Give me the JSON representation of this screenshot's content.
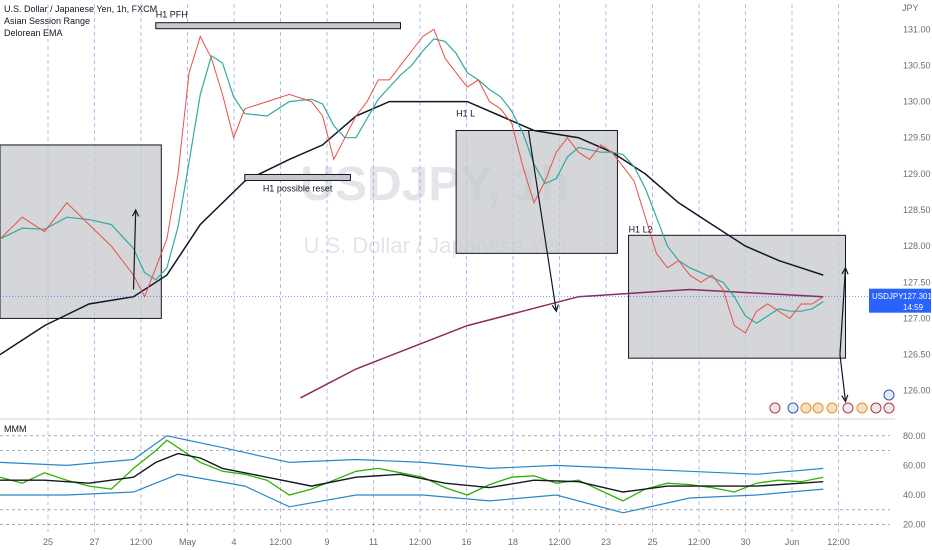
{
  "chart_data": {
    "type": "line",
    "title": "U.S. Dollar / Japanese Yen, 1h, FXCM",
    "indicators": [
      "Asian Session Range",
      "Delorean EMA"
    ],
    "watermark": {
      "symbol": "USDJPY, 1h",
      "name": "U.S. Dollar / Japanese Yen"
    },
    "currency_label": "JPY",
    "y_ticks": [
      131.0,
      130.5,
      130.0,
      129.5,
      129.0,
      128.5,
      128.0,
      127.5,
      127.0,
      126.5,
      126.0
    ],
    "ylim": [
      125.65,
      131.35
    ],
    "x_ticks": [
      "25",
      "27",
      "12:00",
      "May",
      "4",
      "12:00",
      "9",
      "11",
      "12:00",
      "16",
      "18",
      "12:00",
      "23",
      "25",
      "12:00",
      "30",
      "Jun",
      "12:00"
    ],
    "last_price": {
      "symbol": "USDJPY",
      "value": "127.301",
      "countdown": "14:59",
      "price": 127.301
    },
    "price_series": [
      {
        "x": 0,
        "y": 128.1
      },
      {
        "x": 2,
        "y": 128.4
      },
      {
        "x": 4,
        "y": 128.2
      },
      {
        "x": 6,
        "y": 128.6
      },
      {
        "x": 8,
        "y": 128.3
      },
      {
        "x": 10,
        "y": 128.0
      },
      {
        "x": 12,
        "y": 127.6
      },
      {
        "x": 13,
        "y": 127.3
      },
      {
        "x": 14,
        "y": 127.7
      },
      {
        "x": 15,
        "y": 128.1
      },
      {
        "x": 16,
        "y": 129.0
      },
      {
        "x": 17,
        "y": 130.4
      },
      {
        "x": 18,
        "y": 130.9
      },
      {
        "x": 19,
        "y": 130.6
      },
      {
        "x": 20,
        "y": 130.1
      },
      {
        "x": 21,
        "y": 129.5
      },
      {
        "x": 22,
        "y": 129.9
      },
      {
        "x": 24,
        "y": 130.0
      },
      {
        "x": 26,
        "y": 130.1
      },
      {
        "x": 28,
        "y": 130.0
      },
      {
        "x": 29,
        "y": 129.8
      },
      {
        "x": 30,
        "y": 129.2
      },
      {
        "x": 31,
        "y": 129.5
      },
      {
        "x": 32,
        "y": 129.8
      },
      {
        "x": 33,
        "y": 130.0
      },
      {
        "x": 34,
        "y": 130.3
      },
      {
        "x": 35,
        "y": 130.3
      },
      {
        "x": 36,
        "y": 130.5
      },
      {
        "x": 37,
        "y": 130.7
      },
      {
        "x": 38,
        "y": 130.9
      },
      {
        "x": 39,
        "y": 131.0
      },
      {
        "x": 40,
        "y": 130.6
      },
      {
        "x": 41,
        "y": 130.4
      },
      {
        "x": 42,
        "y": 130.2
      },
      {
        "x": 43,
        "y": 130.3
      },
      {
        "x": 44,
        "y": 130.0
      },
      {
        "x": 45,
        "y": 129.9
      },
      {
        "x": 46,
        "y": 129.7
      },
      {
        "x": 47,
        "y": 129.1
      },
      {
        "x": 48,
        "y": 128.6
      },
      {
        "x": 49,
        "y": 128.9
      },
      {
        "x": 50,
        "y": 129.3
      },
      {
        "x": 51,
        "y": 129.5
      },
      {
        "x": 52,
        "y": 129.3
      },
      {
        "x": 53,
        "y": 129.2
      },
      {
        "x": 54,
        "y": 129.4
      },
      {
        "x": 55,
        "y": 129.3
      },
      {
        "x": 56,
        "y": 129.1
      },
      {
        "x": 57,
        "y": 128.9
      },
      {
        "x": 58,
        "y": 128.4
      },
      {
        "x": 59,
        "y": 127.9
      },
      {
        "x": 60,
        "y": 127.7
      },
      {
        "x": 61,
        "y": 127.8
      },
      {
        "x": 62,
        "y": 127.6
      },
      {
        "x": 63,
        "y": 127.5
      },
      {
        "x": 64,
        "y": 127.6
      },
      {
        "x": 65,
        "y": 127.4
      },
      {
        "x": 66,
        "y": 126.9
      },
      {
        "x": 67,
        "y": 126.8
      },
      {
        "x": 68,
        "y": 127.1
      },
      {
        "x": 69,
        "y": 127.2
      },
      {
        "x": 70,
        "y": 127.1
      },
      {
        "x": 71,
        "y": 127.0
      },
      {
        "x": 72,
        "y": 127.2
      },
      {
        "x": 73,
        "y": 127.2
      },
      {
        "x": 74,
        "y": 127.3
      }
    ],
    "ema_slow": [
      {
        "x": 0,
        "y": 126.5
      },
      {
        "x": 4,
        "y": 126.9
      },
      {
        "x": 8,
        "y": 127.2
      },
      {
        "x": 12,
        "y": 127.3
      },
      {
        "x": 15,
        "y": 127.6
      },
      {
        "x": 18,
        "y": 128.3
      },
      {
        "x": 22,
        "y": 128.9
      },
      {
        "x": 26,
        "y": 129.2
      },
      {
        "x": 29,
        "y": 129.4
      },
      {
        "x": 32,
        "y": 129.8
      },
      {
        "x": 35,
        "y": 130.0
      },
      {
        "x": 38,
        "y": 130.0
      },
      {
        "x": 42,
        "y": 130.0
      },
      {
        "x": 45,
        "y": 129.8
      },
      {
        "x": 48,
        "y": 129.6
      },
      {
        "x": 52,
        "y": 129.5
      },
      {
        "x": 55,
        "y": 129.3
      },
      {
        "x": 58,
        "y": 129.0
      },
      {
        "x": 61,
        "y": 128.6
      },
      {
        "x": 64,
        "y": 128.3
      },
      {
        "x": 67,
        "y": 128.0
      },
      {
        "x": 70,
        "y": 127.8
      },
      {
        "x": 72,
        "y": 127.7
      },
      {
        "x": 74,
        "y": 127.6
      }
    ],
    "ema_long": [
      {
        "x": 27,
        "y": 125.9
      },
      {
        "x": 32,
        "y": 126.3
      },
      {
        "x": 37,
        "y": 126.6
      },
      {
        "x": 42,
        "y": 126.9
      },
      {
        "x": 47,
        "y": 127.1
      },
      {
        "x": 52,
        "y": 127.3
      },
      {
        "x": 57,
        "y": 127.35
      },
      {
        "x": 62,
        "y": 127.4
      },
      {
        "x": 68,
        "y": 127.35
      },
      {
        "x": 74,
        "y": 127.3
      }
    ],
    "zones": [
      {
        "label": "",
        "x0": 0,
        "x1": 14.5,
        "y0": 129.4,
        "y1": 127.0
      },
      {
        "label": "",
        "x0": 41,
        "x1": 55.5,
        "y0": 129.6,
        "y1": 127.9
      },
      {
        "label": "",
        "x0": 56.5,
        "x1": 76,
        "y0": 128.15,
        "y1": 126.45
      }
    ],
    "level_bars": [
      {
        "label": "H1 PFH",
        "x0": 14,
        "x1": 36,
        "y": 131.05
      },
      {
        "label": "H1 possible reset",
        "x0": 22,
        "x1": 31.5,
        "y": 128.95
      }
    ],
    "labels": [
      {
        "text": "H1 L",
        "x": 41,
        "y": 129.75
      },
      {
        "text": "H1 L2",
        "x": 56.5,
        "y": 128.15
      }
    ],
    "arrows": [
      {
        "x0": 12,
        "y0": 127.4,
        "x1": 12.2,
        "y1": 128.5
      },
      {
        "x0": 47.5,
        "y0": 129.6,
        "x1": 50,
        "y1": 127.1
      },
      {
        "x0": 75.5,
        "y0": 126.5,
        "x1": 76,
        "y1": 127.7
      },
      {
        "x0": 75.5,
        "y0": 126.5,
        "x1": 76,
        "y1": 125.85
      }
    ],
    "oscillator": {
      "name": "MMM",
      "y_ticks": [
        80.0,
        60.0,
        40.0,
        20.0
      ],
      "ylim": [
        15,
        90
      ],
      "main": [
        {
          "x": 0,
          "y": 52
        },
        {
          "x": 2,
          "y": 48
        },
        {
          "x": 4,
          "y": 55
        },
        {
          "x": 6,
          "y": 50
        },
        {
          "x": 8,
          "y": 46
        },
        {
          "x": 10,
          "y": 44
        },
        {
          "x": 12,
          "y": 58
        },
        {
          "x": 14,
          "y": 70
        },
        {
          "x": 15,
          "y": 77
        },
        {
          "x": 16,
          "y": 72
        },
        {
          "x": 18,
          "y": 62
        },
        {
          "x": 20,
          "y": 56
        },
        {
          "x": 22,
          "y": 54
        },
        {
          "x": 24,
          "y": 50
        },
        {
          "x": 26,
          "y": 40
        },
        {
          "x": 28,
          "y": 44
        },
        {
          "x": 30,
          "y": 50
        },
        {
          "x": 32,
          "y": 56
        },
        {
          "x": 34,
          "y": 58
        },
        {
          "x": 36,
          "y": 55
        },
        {
          "x": 38,
          "y": 52
        },
        {
          "x": 40,
          "y": 45
        },
        {
          "x": 42,
          "y": 40
        },
        {
          "x": 44,
          "y": 47
        },
        {
          "x": 46,
          "y": 52
        },
        {
          "x": 48,
          "y": 53
        },
        {
          "x": 50,
          "y": 48
        },
        {
          "x": 52,
          "y": 50
        },
        {
          "x": 54,
          "y": 43
        },
        {
          "x": 56,
          "y": 36
        },
        {
          "x": 58,
          "y": 44
        },
        {
          "x": 60,
          "y": 48
        },
        {
          "x": 62,
          "y": 47
        },
        {
          "x": 64,
          "y": 45
        },
        {
          "x": 66,
          "y": 42
        },
        {
          "x": 68,
          "y": 48
        },
        {
          "x": 70,
          "y": 50
        },
        {
          "x": 72,
          "y": 49
        },
        {
          "x": 74,
          "y": 52
        }
      ],
      "signal": [
        {
          "x": 0,
          "y": 50
        },
        {
          "x": 4,
          "y": 50
        },
        {
          "x": 8,
          "y": 48
        },
        {
          "x": 12,
          "y": 52
        },
        {
          "x": 14,
          "y": 62
        },
        {
          "x": 16,
          "y": 68
        },
        {
          "x": 18,
          "y": 65
        },
        {
          "x": 20,
          "y": 58
        },
        {
          "x": 24,
          "y": 52
        },
        {
          "x": 28,
          "y": 46
        },
        {
          "x": 32,
          "y": 52
        },
        {
          "x": 36,
          "y": 54
        },
        {
          "x": 40,
          "y": 48
        },
        {
          "x": 44,
          "y": 45
        },
        {
          "x": 48,
          "y": 50
        },
        {
          "x": 52,
          "y": 49
        },
        {
          "x": 56,
          "y": 42
        },
        {
          "x": 60,
          "y": 46
        },
        {
          "x": 64,
          "y": 46
        },
        {
          "x": 68,
          "y": 46
        },
        {
          "x": 72,
          "y": 48
        },
        {
          "x": 74,
          "y": 49
        }
      ],
      "upper_band": [
        {
          "x": 0,
          "y": 62
        },
        {
          "x": 6,
          "y": 60
        },
        {
          "x": 12,
          "y": 64
        },
        {
          "x": 15,
          "y": 80
        },
        {
          "x": 20,
          "y": 72
        },
        {
          "x": 26,
          "y": 62
        },
        {
          "x": 32,
          "y": 64
        },
        {
          "x": 38,
          "y": 62
        },
        {
          "x": 44,
          "y": 58
        },
        {
          "x": 50,
          "y": 60
        },
        {
          "x": 56,
          "y": 58
        },
        {
          "x": 62,
          "y": 56
        },
        {
          "x": 68,
          "y": 54
        },
        {
          "x": 74,
          "y": 58
        }
      ],
      "lower_band": [
        {
          "x": 0,
          "y": 40
        },
        {
          "x": 6,
          "y": 40
        },
        {
          "x": 12,
          "y": 42
        },
        {
          "x": 16,
          "y": 54
        },
        {
          "x": 22,
          "y": 46
        },
        {
          "x": 26,
          "y": 32
        },
        {
          "x": 32,
          "y": 40
        },
        {
          "x": 38,
          "y": 40
        },
        {
          "x": 44,
          "y": 36
        },
        {
          "x": 50,
          "y": 40
        },
        {
          "x": 56,
          "y": 28
        },
        {
          "x": 62,
          "y": 38
        },
        {
          "x": 68,
          "y": 40
        },
        {
          "x": 74,
          "y": 44
        }
      ]
    },
    "colors": {
      "price": "#e8504a",
      "ema_fast": "#33a99c",
      "ema_slow": "#131722",
      "ema_long": "#8b2c5c",
      "zone": "#c6c8cd",
      "osc_main": "#2db300",
      "osc_band": "#2a87c8",
      "last_price_bg": "#2962ff",
      "grid_v": "#8fa6e8"
    }
  }
}
